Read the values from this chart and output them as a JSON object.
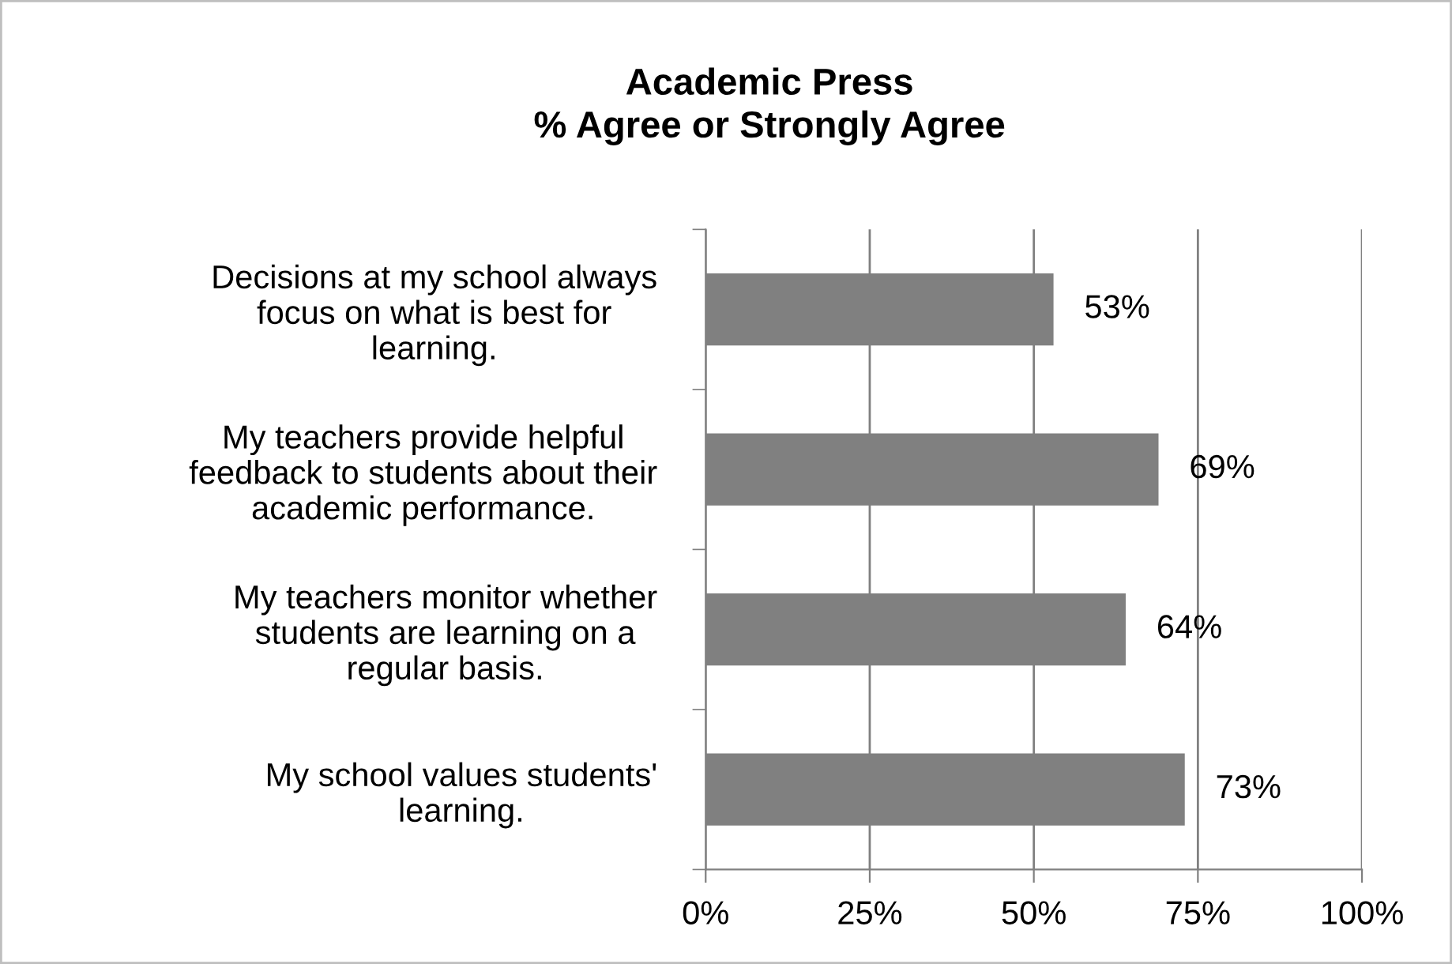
{
  "chart_data": {
    "type": "bar",
    "orientation": "horizontal",
    "title": "Academic Press\n% Agree or Strongly Agree",
    "categories": [
      "Decisions at my school always\nfocus on what is best for\nlearning.",
      "My teachers provide helpful\nfeedback to students about their\nacademic performance.",
      "My teachers monitor whether\nstudents are learning on a\nregular basis.",
      "My school values students'\nlearning."
    ],
    "values": [
      53,
      69,
      64,
      73
    ],
    "value_labels": [
      "53%",
      "69%",
      "64%",
      "73%"
    ],
    "color": "#808080",
    "xlim": [
      0,
      100
    ],
    "xticks": [
      {
        "value": 0,
        "label": "0%"
      },
      {
        "value": 25,
        "label": "25%"
      },
      {
        "value": 50,
        "label": "50%"
      },
      {
        "value": 75,
        "label": "75%"
      },
      {
        "value": 100,
        "label": "100%"
      }
    ],
    "grid": "x",
    "legend": false
  }
}
